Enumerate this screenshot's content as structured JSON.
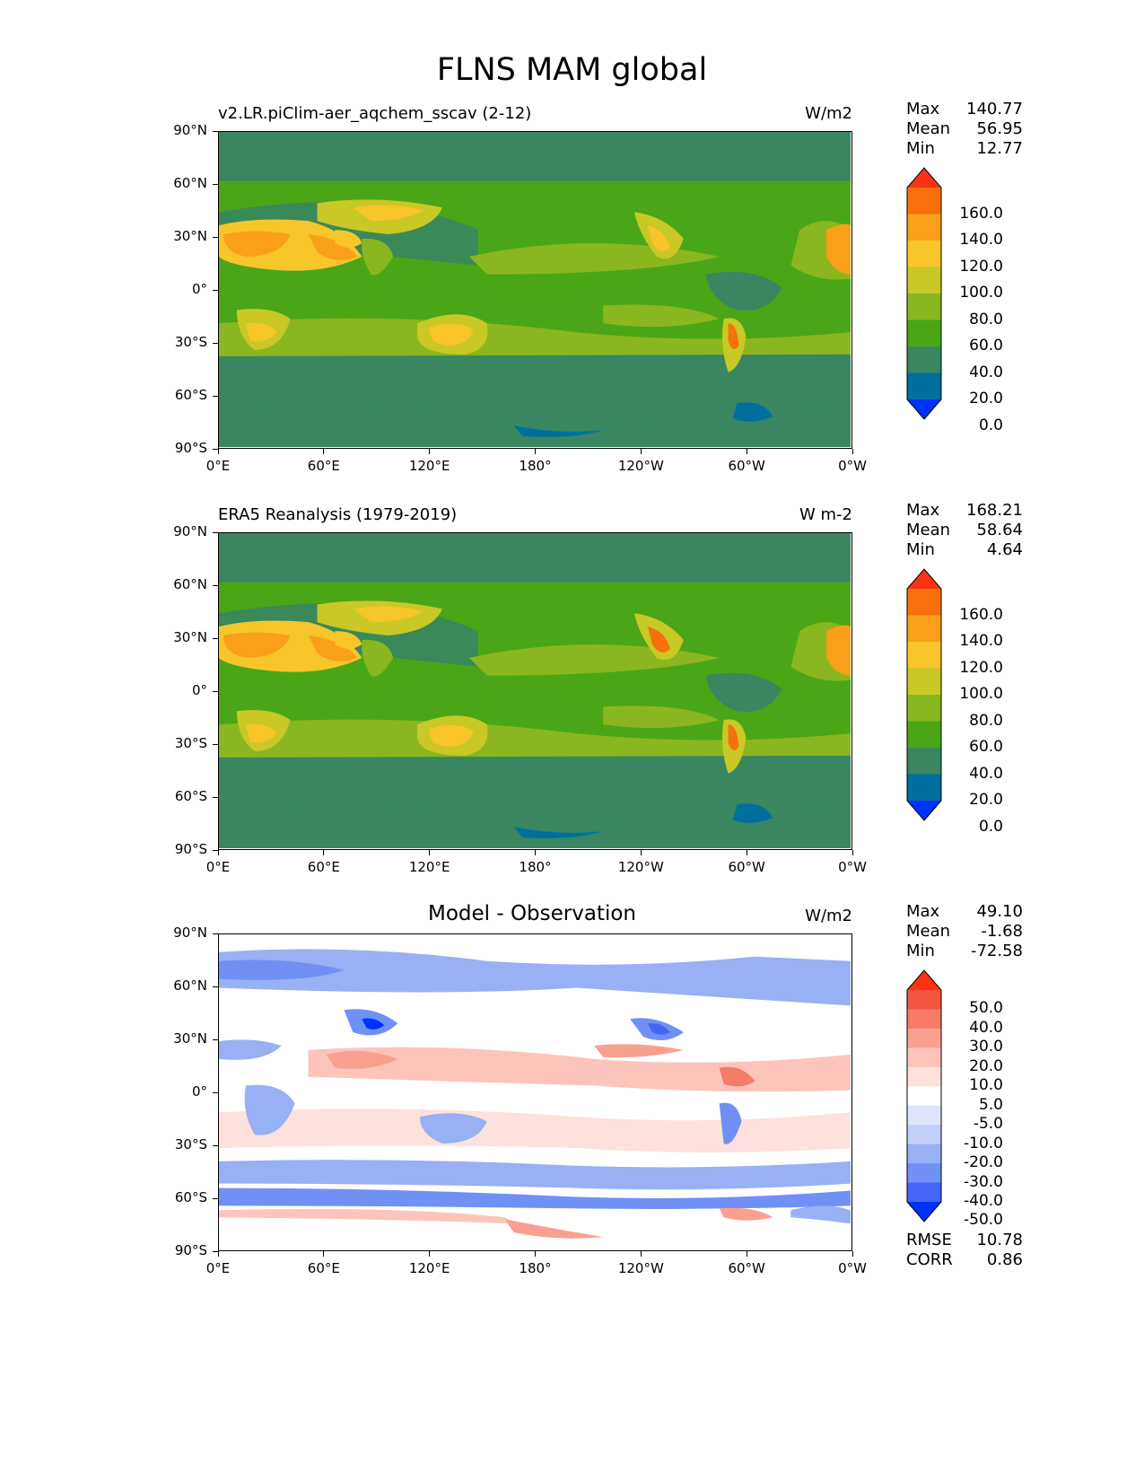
{
  "figure_title": "FLNS MAM global",
  "x_ticks": [
    "0°E",
    "60°E",
    "120°E",
    "180°",
    "120°W",
    "60°W",
    "0°W"
  ],
  "y_ticks": [
    "90°N",
    "60°N",
    "30°N",
    "0°",
    "30°S",
    "60°S",
    "90°S"
  ],
  "panels": [
    {
      "title": "v2.LR.piClim-aer_aqchem_sscav (2-12)",
      "units": "W/m2",
      "stats": {
        "max_label": "Max",
        "max": "140.77",
        "mean_label": "Mean",
        "mean": "56.95",
        "min_label": "Min",
        "min": "12.77"
      },
      "colorbar_labels": [
        "160.0",
        "140.0",
        "120.0",
        "100.0",
        "80.0",
        "60.0",
        "40.0",
        "20.0",
        "0.0"
      ]
    },
    {
      "title": "ERA5 Reanalysis (1979-2019)",
      "units": "W m-2",
      "stats": {
        "max_label": "Max",
        "max": "168.21",
        "mean_label": "Mean",
        "mean": "58.64",
        "min_label": "Min",
        "min": "4.64"
      },
      "colorbar_labels": [
        "160.0",
        "140.0",
        "120.0",
        "100.0",
        "80.0",
        "60.0",
        "40.0",
        "20.0",
        "0.0"
      ]
    },
    {
      "title": "Model - Observation",
      "units": "W/m2",
      "stats": {
        "max_label": "Max",
        "max": "49.10",
        "mean_label": "Mean",
        "mean": "-1.68",
        "min_label": "Min",
        "min": "-72.58"
      },
      "colorbar_labels": [
        "50.0",
        "40.0",
        "30.0",
        "20.0",
        "10.0",
        "5.0",
        "-5.0",
        "-10.0",
        "-20.0",
        "-30.0",
        "-40.0",
        "-50.0"
      ],
      "metrics": {
        "rmse_label": "RMSE",
        "rmse": "10.78",
        "corr_label": "CORR",
        "corr": "0.86"
      }
    }
  ],
  "colors": {
    "field": [
      "#0032ff",
      "#006f9e",
      "#398661",
      "#4aa617",
      "#8ab61f",
      "#c8c827",
      "#f8c52b",
      "#f99f1a",
      "#f7700b",
      "#fc3310"
    ],
    "diff": [
      "#0032ff",
      "#4465f8",
      "#7190f6",
      "#98b0f4",
      "#c1cffa",
      "#dfe5fb",
      "#ffffff",
      "#fde1dc",
      "#fcc4bb",
      "#f9a090",
      "#f67c68",
      "#f45540",
      "#fc3310"
    ]
  }
}
